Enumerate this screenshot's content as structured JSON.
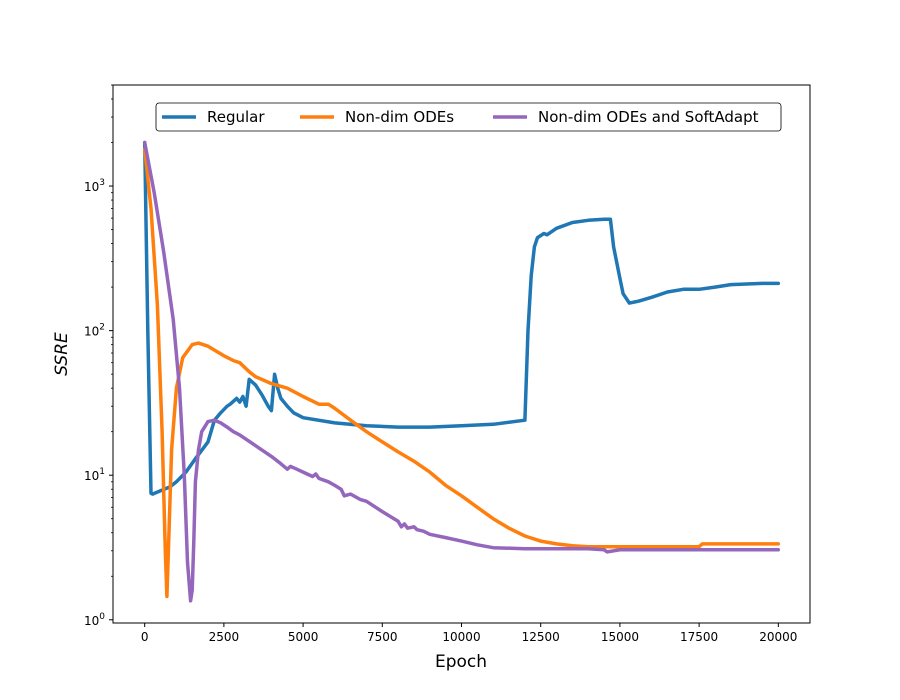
{
  "chart_data": {
    "type": "line",
    "xlabel": "Epoch",
    "ylabel": "SSRE",
    "y_scale": "log",
    "xlim": [
      -1000,
      21000
    ],
    "ylim": [
      0.95,
      5000
    ],
    "x_ticks": [
      0,
      2500,
      5000,
      7500,
      10000,
      12500,
      15000,
      17500,
      20000
    ],
    "x_tick_labels": [
      "0",
      "2500",
      "5000",
      "7500",
      "10000",
      "12500",
      "15000",
      "17500",
      "20000"
    ],
    "y_ticks": [
      1,
      10,
      100,
      1000
    ],
    "y_tick_labels": [
      {
        "base": "10",
        "exp": "0"
      },
      {
        "base": "10",
        "exp": "1"
      },
      {
        "base": "10",
        "exp": "2"
      },
      {
        "base": "10",
        "exp": "3"
      }
    ],
    "grid": false,
    "legend": {
      "placement": "top",
      "columns": 3
    },
    "series": [
      {
        "name": "Regular",
        "color": "#1f77b4",
        "x": [
          0,
          100,
          200,
          250,
          500,
          800,
          1000,
          1300,
          1600,
          2000,
          2200,
          2400,
          2600,
          2700,
          2900,
          3000,
          3100,
          3200,
          3300,
          3400,
          3500,
          3700,
          3900,
          4000,
          4100,
          4200,
          4300,
          4500,
          4700,
          5000,
          6000,
          7000,
          8000,
          9000,
          10000,
          11000,
          12000,
          12100,
          12200,
          12300,
          12400,
          12600,
          12700,
          13000,
          13500,
          14000,
          14500,
          14700,
          14800,
          15000,
          15100,
          15300,
          15600,
          16000,
          16500,
          17000,
          17500,
          18000,
          18500,
          19000,
          19500,
          20000
        ],
        "y": [
          2000,
          100,
          7.5,
          7.4,
          7.8,
          8.3,
          9,
          10.5,
          13,
          17,
          24,
          27,
          30,
          31,
          34,
          32,
          35,
          30,
          46,
          44,
          42,
          36,
          30,
          28,
          50,
          40,
          34,
          30,
          27,
          25,
          23,
          22,
          21.5,
          21.5,
          22,
          22.5,
          24,
          100,
          240,
          380,
          440,
          470,
          460,
          510,
          560,
          580,
          590,
          590,
          380,
          230,
          180,
          155,
          160,
          170,
          185,
          193,
          193,
          200,
          208,
          210,
          212,
          212
        ]
      },
      {
        "name": "Non-dim ODEs",
        "color": "#ff7f0e",
        "x": [
          0,
          200,
          400,
          550,
          650,
          700,
          750,
          850,
          1000,
          1200,
          1500,
          1700,
          2000,
          2500,
          2800,
          3000,
          3300,
          3500,
          4000,
          4500,
          5000,
          5500,
          5800,
          6000,
          6500,
          7000,
          7500,
          8000,
          8500,
          9000,
          9500,
          10000,
          10500,
          11000,
          11500,
          12000,
          12500,
          13000,
          13500,
          14000,
          15000,
          16000,
          17000,
          17500,
          17600,
          18000,
          19000,
          20000
        ],
        "y": [
          1800,
          700,
          150,
          20,
          3,
          1.45,
          3,
          15,
          40,
          65,
          80,
          82,
          78,
          67,
          62,
          60,
          52,
          48,
          43,
          40,
          35,
          31,
          31,
          29,
          24,
          20,
          17,
          14.5,
          12.5,
          10.5,
          8.5,
          7.2,
          6.0,
          5.0,
          4.3,
          3.8,
          3.5,
          3.35,
          3.25,
          3.2,
          3.2,
          3.2,
          3.2,
          3.2,
          3.35,
          3.35,
          3.35,
          3.35
        ]
      },
      {
        "name": "Non-dim ODEs and SoftAdapt",
        "color": "#9467bd",
        "x": [
          0,
          300,
          600,
          900,
          1100,
          1250,
          1350,
          1450,
          1500,
          1550,
          1600,
          1700,
          1800,
          2000,
          2200,
          2400,
          2600,
          2800,
          3000,
          3500,
          4000,
          4300,
          4500,
          4600,
          4800,
          5000,
          5300,
          5400,
          5500,
          5800,
          6000,
          6200,
          6300,
          6500,
          6800,
          7000,
          7500,
          8000,
          8100,
          8200,
          8300,
          8500,
          8600,
          8800,
          9000,
          9500,
          10000,
          10500,
          11000,
          12000,
          13000,
          14000,
          14500,
          14600,
          15000,
          16000,
          17000,
          18000,
          19000,
          20000
        ],
        "y": [
          2000,
          900,
          350,
          120,
          40,
          10,
          2.5,
          1.35,
          1.6,
          3.5,
          9,
          15,
          20,
          23.5,
          24,
          23,
          21.5,
          20,
          19,
          16,
          13.5,
          12,
          11,
          11.5,
          11,
          10.5,
          9.8,
          10.2,
          9.5,
          9,
          8.5,
          8,
          7.2,
          7.4,
          6.8,
          6.6,
          5.6,
          4.8,
          4.4,
          4.6,
          4.3,
          4.4,
          4.2,
          4.1,
          3.9,
          3.7,
          3.5,
          3.3,
          3.15,
          3.1,
          3.1,
          3.1,
          3.05,
          2.95,
          3.05,
          3.05,
          3.05,
          3.05,
          3.05,
          3.05
        ]
      }
    ]
  }
}
